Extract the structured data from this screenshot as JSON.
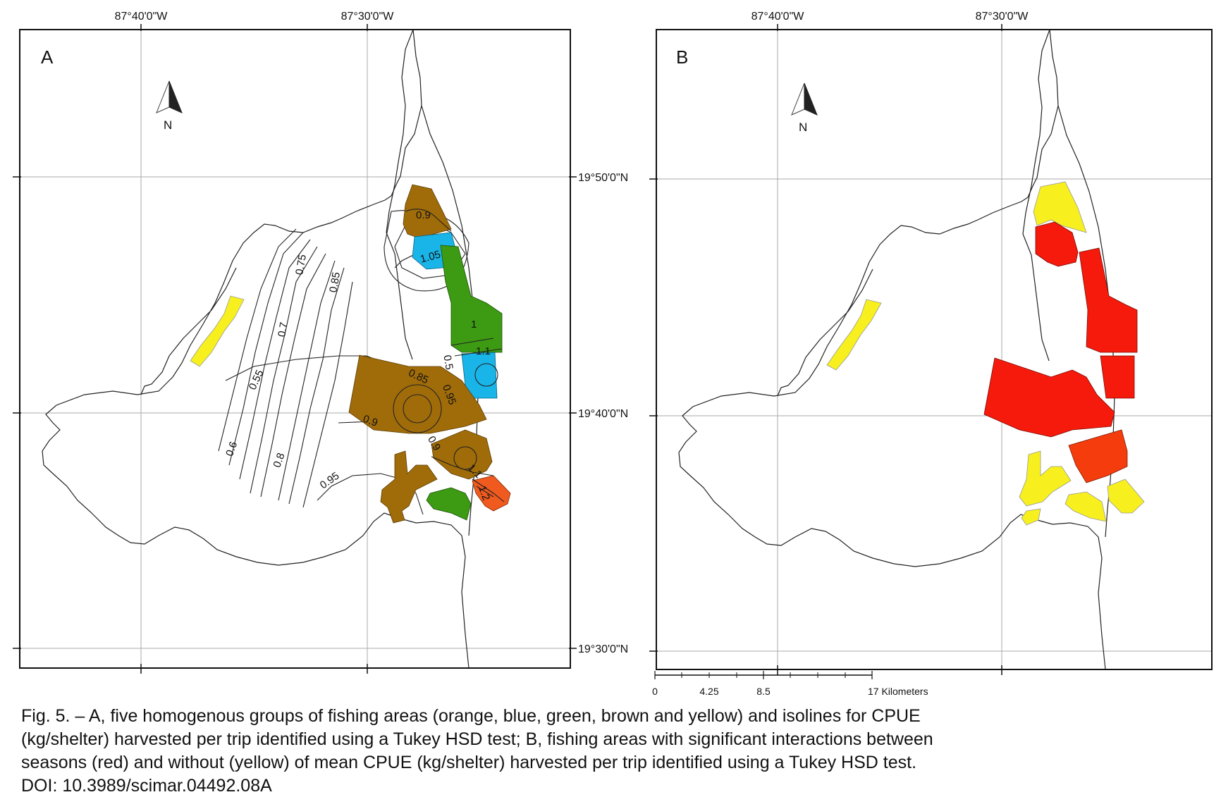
{
  "panels": [
    {
      "label": "A",
      "north_label": "N",
      "lon_labels": [
        "87°40'0\"W",
        "87°30'0\"W"
      ],
      "lat_labels": [
        "19°50'0\"N",
        "19°40'0\"N",
        "19°30'0\"N"
      ],
      "isoline_labels": [
        "0.9",
        "1.05",
        "0.75",
        "0.85",
        "0.7",
        "0.55",
        "0.6",
        "0.8",
        "0.95",
        "0.85",
        "0.95",
        "0.9",
        "1",
        "1.1",
        "0.9",
        "1.1",
        "1.2",
        "0.5"
      ]
    },
    {
      "label": "B",
      "north_label": "N",
      "lon_labels": [
        "87°40'0\"W",
        "87°30'0\"W"
      ],
      "lat_labels": [],
      "scale_bar": {
        "labels": [
          "0",
          "4.25",
          "8.5",
          "17 Kilometers"
        ]
      }
    }
  ],
  "legend_colors": {
    "orange": "#f05a1e",
    "blue": "#19b5e8",
    "green": "#3c9b12",
    "brown": "#a06c0a",
    "yellow": "#f7f01e",
    "red": "#f51a0c",
    "red_orange": "#f53c0c"
  },
  "caption": {
    "line1": "Fig. 5. – A, five homogenous groups of fishing areas (orange, blue, green, brown and yellow) and isolines for CPUE",
    "line2": "(kg/shelter) harvested per trip identified using a Tukey HSD test; B, fishing areas with significant interactions between",
    "line3": "seasons (red) and without (yellow) of mean CPUE (kg/shelter) harvested per trip identified using a Tukey HSD test.",
    "doi": "DOI: 10.3989/scimar.04492.08A"
  }
}
